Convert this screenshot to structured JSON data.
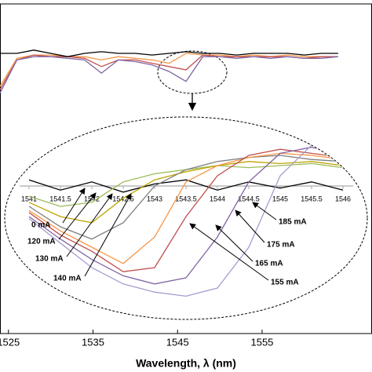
{
  "chart_data": [
    {
      "type": "line",
      "xlabel": "Wavelength, λ (nm)",
      "x": [
        1524,
        1526,
        1528,
        1530,
        1532,
        1534,
        1536,
        1538,
        1540,
        1542,
        1544,
        1546,
        1548,
        1550,
        1552,
        1554,
        1556,
        1558,
        1560,
        1562,
        1564
      ],
      "series": [
        {
          "color": "#f79646",
          "values": [
            7.5,
            8.35,
            8.45,
            8.45,
            8.4,
            8.4,
            8.3,
            8.4,
            8.35,
            8.3,
            8.2,
            8.5,
            8.45,
            8.45,
            8.4,
            8.45,
            8.4,
            8.45,
            8.4,
            8.4,
            8.4
          ]
        },
        {
          "color": "#c0504d",
          "values": [
            7.4,
            8.3,
            8.45,
            8.4,
            8.4,
            8.35,
            8.1,
            8.3,
            8.3,
            8.2,
            8.1,
            8.0,
            8.45,
            8.4,
            8.4,
            8.4,
            8.4,
            8.4,
            8.35,
            8.4,
            8.4
          ]
        },
        {
          "color": "#8064a2",
          "values": [
            7.3,
            8.3,
            8.4,
            8.4,
            8.35,
            8.3,
            7.9,
            8.3,
            8.25,
            8.15,
            7.95,
            7.65,
            8.4,
            8.4,
            8.35,
            8.4,
            8.35,
            8.4,
            8.35,
            8.35,
            8.4
          ]
        },
        {
          "color": "#000000",
          "values": [
            8.5,
            8.5,
            8.6,
            8.5,
            8.4,
            8.5,
            8.55,
            8.5,
            8.5,
            8.45,
            8.5,
            8.55,
            8.5,
            8.5,
            8.45,
            8.5,
            8.5,
            8.5,
            8.45,
            8.5,
            8.5
          ]
        }
      ],
      "xlim": [
        1524,
        1568
      ],
      "xticks": [
        1525,
        1535,
        1545,
        1555
      ],
      "ylim": [
        0,
        10
      ]
    },
    {
      "type": "line",
      "x": [
        1541,
        1541.5,
        1542,
        1542.5,
        1543,
        1543.5,
        1544,
        1544.5,
        1545,
        1545.5,
        1546
      ],
      "series": [
        {
          "name": "0 mA",
          "color": "#000000",
          "values": [
            0.3,
            -0.2,
            0.2,
            -0.3,
            0.1,
            0.3,
            -0.2,
            0.2,
            -0.1,
            0.2,
            -0.2
          ]
        },
        {
          "name": "120 mA",
          "color": "#9bbb59",
          "values": [
            -0.5,
            -1.0,
            -0.8,
            0.2,
            0.6,
            0.8,
            1.0,
            0.9,
            1.0,
            1.1,
            0.9
          ]
        },
        {
          "name": "130 mA",
          "color": "#bfa300",
          "values": [
            -0.8,
            -1.5,
            -1.8,
            -0.6,
            0.3,
            0.7,
            1.0,
            1.2,
            1.1,
            1.2,
            1.0
          ]
        },
        {
          "name": "140 mA",
          "color": "#7f7f7f",
          "values": [
            -1.0,
            -2.0,
            -2.6,
            -1.8,
            0.0,
            0.8,
            1.2,
            1.4,
            1.5,
            1.3,
            1.2
          ]
        },
        {
          "name": "155 mA",
          "color": "#f79646",
          "values": [
            -1.2,
            -2.2,
            -3.0,
            -3.8,
            -2.5,
            0.2,
            1.0,
            1.4,
            1.6,
            1.5,
            1.3
          ]
        },
        {
          "name": "165 mA",
          "color": "#c0504d",
          "values": [
            -1.3,
            -2.4,
            -3.2,
            -4.2,
            -4.0,
            -1.5,
            0.5,
            1.5,
            1.8,
            1.6,
            1.4
          ]
        },
        {
          "name": "175 mA",
          "color": "#8064a2",
          "values": [
            -1.5,
            -2.6,
            -3.6,
            -4.4,
            -4.8,
            -4.5,
            -2.5,
            0.2,
            1.6,
            1.9,
            1.5
          ]
        },
        {
          "name": "185 mA",
          "color": "#a99bd0",
          "values": [
            -1.6,
            -2.8,
            -4.0,
            -4.8,
            -5.2,
            -5.4,
            -5.0,
            -3.0,
            0.5,
            2.0,
            1.6
          ]
        }
      ],
      "xlim": [
        1541,
        1546
      ],
      "xticks": [
        1541,
        1541.5,
        1542,
        1542.5,
        1543,
        1543.5,
        1544,
        1544.5,
        1545,
        1545.5,
        1546
      ],
      "ylim": [
        -6,
        2
      ]
    }
  ]
}
